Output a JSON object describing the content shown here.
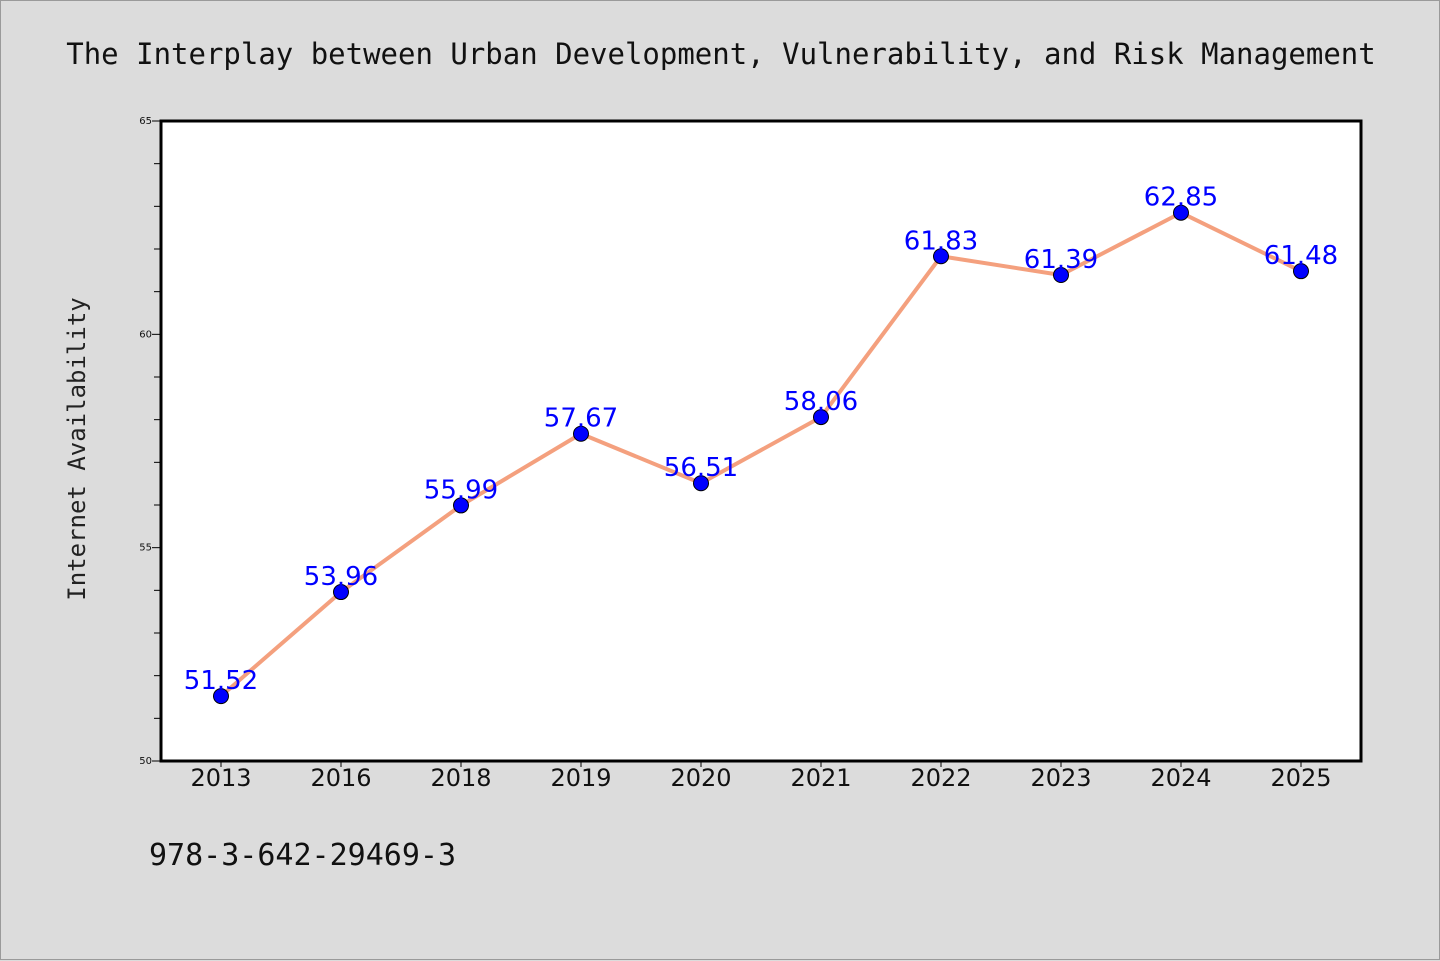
{
  "chart_data": {
    "type": "line",
    "title": "The Interplay between Urban Development, Vulnerability, and Risk Management",
    "ylabel": "Internet Availability",
    "xlabel": "",
    "categories": [
      "2013",
      "2016",
      "2018",
      "2019",
      "2020",
      "2021",
      "2022",
      "2023",
      "2024",
      "2025"
    ],
    "values": [
      51.52,
      53.96,
      55.99,
      57.67,
      56.51,
      58.06,
      61.83,
      61.39,
      62.85,
      61.48
    ],
    "ylim": [
      50,
      65
    ],
    "yticks": [
      "50",
      "55",
      "60",
      "65"
    ],
    "grid": false,
    "line_color": "#f4a07e",
    "marker_color": "#0000ff",
    "label_color": "#0000ff"
  },
  "footer": {
    "code": "978-3-642-29469-3"
  }
}
